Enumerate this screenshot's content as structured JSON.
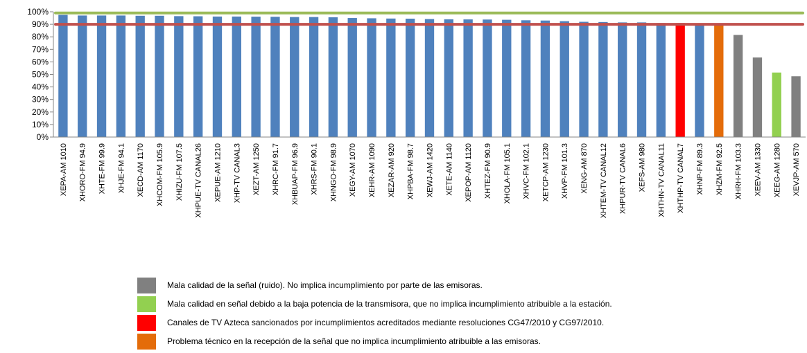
{
  "chart_data": {
    "type": "bar",
    "title": "",
    "xlabel": "",
    "ylabel": "",
    "ylim": [
      0,
      100
    ],
    "yticks": [
      "0%",
      "10%",
      "20%",
      "30%",
      "40%",
      "50%",
      "60%",
      "70%",
      "80%",
      "90%",
      "100%"
    ],
    "grid": false,
    "legend_position": "bottom",
    "categories": [
      "XEPA-AM 1010",
      "XHORO-FM 94.9",
      "XHTE-FM 99.9",
      "XHJE-FM 94.1",
      "XECD-AM 1170",
      "XHCOM-FM 105.9",
      "XHIZU-FM 107.5",
      "XHPUE-TV CANAL26",
      "XEPUE-AM 1210",
      "XHP-TV CANAL3",
      "XEZT-AM 1250",
      "XHRC-FM 91.7",
      "XHBUAP-FM 96.9",
      "XHRS-FM 90.1",
      "XHNGO-FM 98.9",
      "XEGY-AM 1070",
      "XEHR-AM 1090",
      "XEZAR-AM 920",
      "XHPBA-FM 98.7",
      "XEWJ-AM 1420",
      "XETE-AM 1140",
      "XEPOP-AM 1120",
      "XHTEZ-FM 90.9",
      "XHOLA-FM 105.1",
      "XHVC-FM 102.1",
      "XETCP-AM 1230",
      "XHVP-FM 101.3",
      "XENG-AM 870",
      "XHTEM-TV CANAL12",
      "XHPUR-TV CANAL6",
      "XEFS-AM 980",
      "XHTHN-TV CANAL11",
      "XHTHP-TV CANAL7",
      "XHNP-FM 89.3",
      "XHZM-FM 92.5",
      "XHRH-FM 103.3",
      "XEEV-AM 1330",
      "XEEG-AM 1280",
      "XEVJP-AM 570"
    ],
    "values": [
      97.5,
      97,
      97,
      97,
      96.8,
      96.8,
      96.5,
      96.4,
      96.2,
      96.2,
      96.1,
      96,
      95.8,
      95.8,
      95.6,
      95,
      94.8,
      94.6,
      94.5,
      94.2,
      94,
      93.9,
      93.8,
      93.6,
      93.2,
      93,
      92.5,
      92,
      91.8,
      91.5,
      91.5,
      91,
      91,
      90.5,
      90.5,
      81.5,
      63.5,
      51.5,
      48.5
    ],
    "bar_colors": [
      "#4F81BD",
      "#4F81BD",
      "#4F81BD",
      "#4F81BD",
      "#4F81BD",
      "#4F81BD",
      "#4F81BD",
      "#4F81BD",
      "#4F81BD",
      "#4F81BD",
      "#4F81BD",
      "#4F81BD",
      "#4F81BD",
      "#4F81BD",
      "#4F81BD",
      "#4F81BD",
      "#4F81BD",
      "#4F81BD",
      "#4F81BD",
      "#4F81BD",
      "#4F81BD",
      "#4F81BD",
      "#4F81BD",
      "#4F81BD",
      "#4F81BD",
      "#4F81BD",
      "#4F81BD",
      "#4F81BD",
      "#4F81BD",
      "#4F81BD",
      "#4F81BD",
      "#4F81BD",
      "#FF0000",
      "#4F81BD",
      "#E46C0A",
      "#808080",
      "#808080",
      "#92D050",
      "#808080"
    ],
    "reference_lines": [
      {
        "value": 99,
        "color": "#9BBB59"
      },
      {
        "value": 90,
        "color": "#C0504D"
      }
    ],
    "legend": [
      {
        "color": "#808080",
        "label": "Mala calidad de la señal (ruido). No implica incumplimiento por parte de las emisoras."
      },
      {
        "color": "#92D050",
        "label": "Mala calidad en señal debido a la baja potencia de la transmisora, que no implica incumplimiento atribuible a la estación."
      },
      {
        "color": "#FF0000",
        "label": "Canales de TV Azteca sancionados por incumplimientos acreditados mediante resoluciones CG47/2010 y CG97/2010."
      },
      {
        "color": "#E46C0A",
        "label": "Problema técnico en la recepción de la señal que no implica incumplimiento atribuible a las emisoras."
      }
    ]
  }
}
